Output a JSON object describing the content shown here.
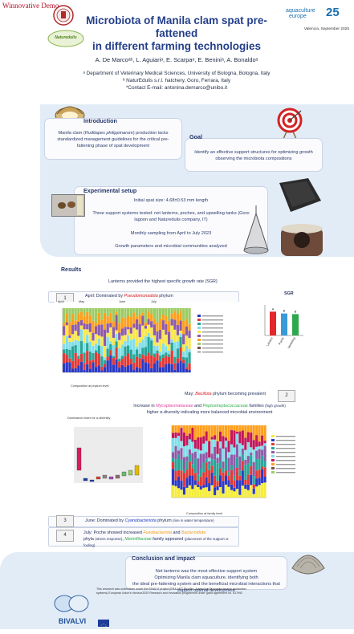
{
  "watermark": "Winnovative Demo",
  "title_line1": "Microbiota of Manila clam spat pre-fattened",
  "title_line2": "in different farming technologies",
  "authors": "A. De Marcoᵃᵇ, L. Aguiariᵃ, E. Scarpaᵃ, E. Beniniᵃ, A. Bonaldoᵃ",
  "affiliations": {
    "a": "ᵃ Department of Veterinary Medical Sciences, University of Bologna, Bologna, Italy",
    "b": "ᵇ NaturEdulis s.r.l. hatchery, Goro, Ferrara, Italy",
    "contact": "*Contact E-mail: antonina.demarco@unibo.it"
  },
  "conference": {
    "name_line1": "aquaculture",
    "name_line2": "europe",
    "year_short": "25",
    "place_date": "Valencia, September 2025"
  },
  "logo_naturedulis": "Naturedulis",
  "intro": {
    "heading": "Introduction",
    "text_pre": "Manila clam (",
    "species": "Ruditapes philippinarum",
    "text_post": ") production lacks standardized management guidelines for the critical pre-fattening phase of spat development"
  },
  "goal": {
    "heading": "Goal",
    "text": "Identify an effective support structures for optimizing growth observing the microbiota compositions"
  },
  "setup": {
    "heading": "Experimental setup",
    "items": [
      "Initial spat size: 4.68±0.53 mm length",
      "Three support systems tested: net lanterns, poches, and upwelling tanks (Goro lagoon and Naturedulis company, IT)",
      "Monthly sampling from April to July 2023",
      "Growth parameters and microbial communities analyzed"
    ]
  },
  "results": {
    "heading": "Results",
    "sgr_text": "Lanterns provided the highest specific growth rate (SGR)",
    "sgr_title": "SGR",
    "f1": {
      "num": "1",
      "pre": "April: Dominated by ",
      "taxon": "Pseudomonadota",
      "post": " phylum"
    },
    "f2": {
      "num": "2",
      "pre": "May: ",
      "taxon": "Bacillota",
      "post": " phylum becoming prevalent"
    },
    "f2b": {
      "pre": "Increase in ",
      "t1": "Mycoplasmataceae",
      "and": " and ",
      "t2": "Peptostreptococcaceae",
      "post": " families ",
      "note": "(high growth)",
      "line2": "higher α-diversity indicating more balanced microbial environment"
    },
    "f3": {
      "num": "3",
      "pre": "June: Dominated by ",
      "taxon": "Cyanobacteriota",
      "post": " phylum ",
      "note": "(rise in water temperature)"
    },
    "f4": {
      "num": "4",
      "pre": "July: Poche showed increased ",
      "t1": "Fusobacteriota",
      "and": " and ",
      "t2": "Bacteroidota",
      "line2_pre": "phyla ",
      "note1": "(stress response)",
      "mid": ", ",
      "t3": "Marinifilaceae",
      "post": " family appeared ",
      "note2": "(placement of the support or fouling)"
    },
    "phylum_caption": "Composition at phylum level",
    "family_caption": "Composition at family level",
    "diversity_title": "Dominance index for α-diversity",
    "months": [
      "April",
      "May",
      "June",
      "July"
    ]
  },
  "chart_data": [
    {
      "type": "bar",
      "title": "SGR",
      "categories": [
        "Lantern",
        "Poche",
        "Upwelling"
      ],
      "values": [
        3.9,
        3.6,
        3.5
      ],
      "letters": [
        "A",
        "B",
        "B"
      ],
      "colors": [
        "#e5262a",
        "#3a9ad9",
        "#2ea84d"
      ],
      "ylim": [
        0,
        5
      ]
    }
  ],
  "conclusion": {
    "heading": "Conclusion and impact",
    "l1": "Net lanterns was the most effective support system",
    "l2": "Optimizing Manila clam aquaculture, identifying both",
    "l3": "the ideal pre-fattening system and the beneficial microbial interactions that",
    "l4": "support optimal development"
  },
  "footer": "This research was undertaken under the BIVALVI project (ERA-NET BlueBio. Advancing European bivalve production systems) European Union's Horizon2020 Research and Innovation programme under grant agreement no. 817992",
  "bivalvi": "BIVALVI",
  "colors": {
    "title": "#243f8a",
    "panel": "#e2ecf7",
    "heading": "#22356a"
  }
}
